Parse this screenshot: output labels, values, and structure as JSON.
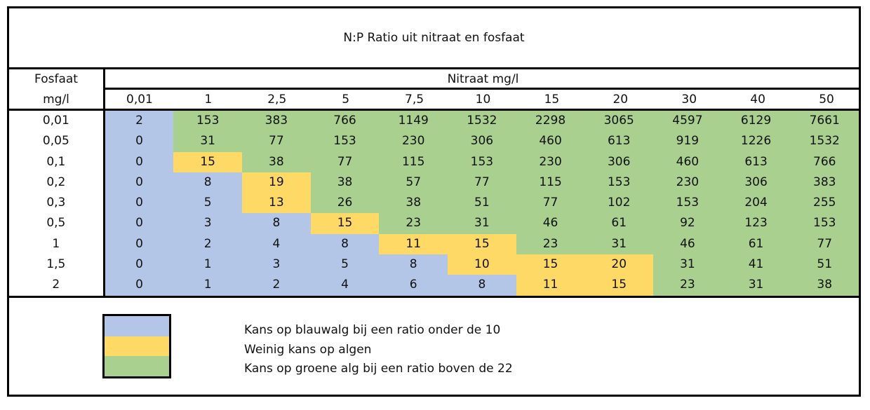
{
  "title": "N:P Ratio uit nitraat en fosfaat",
  "fosfaat_label_line1": "Fosfaat",
  "fosfaat_label_line2": "mg/l",
  "nitraat_label": "Nitraat mg/l",
  "nitraat_columns": [
    "0,01",
    "1",
    "2,5",
    "5",
    "7,5",
    "10",
    "15",
    "20",
    "30",
    "40",
    "50"
  ],
  "rows": [
    {
      "fosfaat": "0,01",
      "values": [
        "2",
        "153",
        "383",
        "766",
        "1149",
        "1532",
        "2298",
        "3065",
        "4597",
        "6129",
        "7661"
      ],
      "zones": [
        "blue",
        "green",
        "green",
        "green",
        "green",
        "green",
        "green",
        "green",
        "green",
        "green",
        "green"
      ]
    },
    {
      "fosfaat": "0,05",
      "values": [
        "0",
        "31",
        "77",
        "153",
        "230",
        "306",
        "460",
        "613",
        "919",
        "1226",
        "1532"
      ],
      "zones": [
        "blue",
        "green",
        "green",
        "green",
        "green",
        "green",
        "green",
        "green",
        "green",
        "green",
        "green"
      ]
    },
    {
      "fosfaat": "0,1",
      "values": [
        "0",
        "15",
        "38",
        "77",
        "115",
        "153",
        "230",
        "306",
        "460",
        "613",
        "766"
      ],
      "zones": [
        "blue",
        "yellow",
        "green",
        "green",
        "green",
        "green",
        "green",
        "green",
        "green",
        "green",
        "green"
      ]
    },
    {
      "fosfaat": "0,2",
      "values": [
        "0",
        "8",
        "19",
        "38",
        "57",
        "77",
        "115",
        "153",
        "230",
        "306",
        "383"
      ],
      "zones": [
        "blue",
        "blue",
        "yellow",
        "green",
        "green",
        "green",
        "green",
        "green",
        "green",
        "green",
        "green"
      ]
    },
    {
      "fosfaat": "0,3",
      "values": [
        "0",
        "5",
        "13",
        "26",
        "38",
        "51",
        "77",
        "102",
        "153",
        "204",
        "255"
      ],
      "zones": [
        "blue",
        "blue",
        "yellow",
        "green",
        "green",
        "green",
        "green",
        "green",
        "green",
        "green",
        "green"
      ]
    },
    {
      "fosfaat": "0,5",
      "values": [
        "0",
        "3",
        "8",
        "15",
        "23",
        "31",
        "46",
        "61",
        "92",
        "123",
        "153"
      ],
      "zones": [
        "blue",
        "blue",
        "blue",
        "yellow",
        "green",
        "green",
        "green",
        "green",
        "green",
        "green",
        "green"
      ]
    },
    {
      "fosfaat": "1",
      "values": [
        "0",
        "2",
        "4",
        "8",
        "11",
        "15",
        "23",
        "31",
        "46",
        "61",
        "77"
      ],
      "zones": [
        "blue",
        "blue",
        "blue",
        "blue",
        "yellow",
        "yellow",
        "green",
        "green",
        "green",
        "green",
        "green"
      ]
    },
    {
      "fosfaat": "1,5",
      "values": [
        "0",
        "1",
        "3",
        "5",
        "8",
        "10",
        "15",
        "20",
        "31",
        "41",
        "51"
      ],
      "zones": [
        "blue",
        "blue",
        "blue",
        "blue",
        "blue",
        "yellow",
        "yellow",
        "yellow",
        "green",
        "green",
        "green"
      ]
    },
    {
      "fosfaat": "2",
      "values": [
        "0",
        "1",
        "2",
        "4",
        "6",
        "8",
        "11",
        "15",
        "23",
        "31",
        "38"
      ],
      "zones": [
        "blue",
        "blue",
        "blue",
        "blue",
        "blue",
        "blue",
        "yellow",
        "yellow",
        "green",
        "green",
        "green"
      ]
    }
  ],
  "colors": {
    "blue": "#b4c6e7",
    "yellow": "#ffd966",
    "green": "#a9d08e"
  },
  "legend": [
    {
      "zone": "blue",
      "text": "Kans op blauwalg bij een ratio onder de 10"
    },
    {
      "zone": "yellow",
      "text": "Weinig kans op algen"
    },
    {
      "zone": "green",
      "text": "Kans op groene alg bij een ratio boven de 22"
    }
  ]
}
